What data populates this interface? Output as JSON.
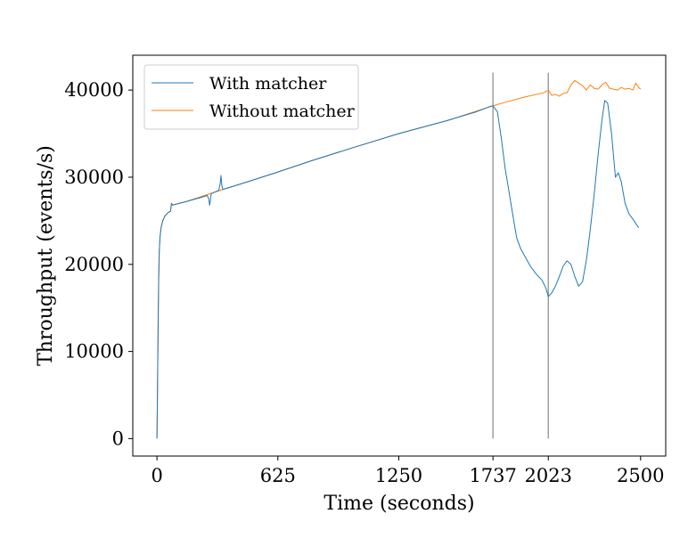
{
  "chart_data": {
    "type": "line",
    "title": "",
    "xlabel": "Time (seconds)",
    "ylabel": "Throughput (events/s)",
    "xlim": [
      -125,
      2630
    ],
    "ylim": [
      -2000,
      44000
    ],
    "x_ticks": [
      0,
      625,
      1250,
      1737,
      2023,
      2500
    ],
    "x_tick_labels": [
      "0",
      "625",
      "1250",
      "1737",
      "2023",
      "2500"
    ],
    "y_ticks": [
      0,
      10000,
      20000,
      30000,
      40000
    ],
    "y_tick_labels": [
      "0",
      "10000",
      "20000",
      "30000",
      "40000"
    ],
    "vlines": [
      1737,
      2023
    ],
    "vline_color": "#999999",
    "grid": false,
    "legend": {
      "position": "top-left",
      "entries": [
        "With matcher",
        "Without matcher"
      ]
    },
    "series": [
      {
        "name": "With matcher",
        "color": "#1f77b4",
        "points": [
          [
            0,
            0
          ],
          [
            3,
            6000
          ],
          [
            6,
            13000
          ],
          [
            9,
            18500
          ],
          [
            12,
            21500
          ],
          [
            16,
            23200
          ],
          [
            22,
            24300
          ],
          [
            30,
            25000
          ],
          [
            40,
            25500
          ],
          [
            55,
            25900
          ],
          [
            70,
            26100
          ],
          [
            75,
            27000
          ],
          [
            80,
            26800
          ],
          [
            150,
            27200
          ],
          [
            230,
            27700
          ],
          [
            260,
            27900
          ],
          [
            268,
            27500
          ],
          [
            272,
            26800
          ],
          [
            276,
            27300
          ],
          [
            280,
            28100
          ],
          [
            300,
            28300
          ],
          [
            320,
            28500
          ],
          [
            327,
            29300
          ],
          [
            331,
            30200
          ],
          [
            335,
            29100
          ],
          [
            340,
            28600
          ],
          [
            400,
            29000
          ],
          [
            500,
            29700
          ],
          [
            625,
            30600
          ],
          [
            800,
            31900
          ],
          [
            1000,
            33300
          ],
          [
            1250,
            35000
          ],
          [
            1500,
            36500
          ],
          [
            1650,
            37500
          ],
          [
            1720,
            38100
          ],
          [
            1737,
            38200
          ],
          [
            1760,
            37500
          ],
          [
            1780,
            34500
          ],
          [
            1800,
            31000
          ],
          [
            1820,
            28300
          ],
          [
            1840,
            25600
          ],
          [
            1860,
            23000
          ],
          [
            1880,
            21800
          ],
          [
            1900,
            21000
          ],
          [
            1930,
            19800
          ],
          [
            1960,
            18900
          ],
          [
            1990,
            18200
          ],
          [
            2010,
            17300
          ],
          [
            2023,
            16300
          ],
          [
            2040,
            16700
          ],
          [
            2060,
            17500
          ],
          [
            2080,
            18600
          ],
          [
            2100,
            19800
          ],
          [
            2120,
            20400
          ],
          [
            2140,
            20000
          ],
          [
            2160,
            18600
          ],
          [
            2180,
            17500
          ],
          [
            2200,
            18000
          ],
          [
            2220,
            20500
          ],
          [
            2240,
            24000
          ],
          [
            2260,
            28000
          ],
          [
            2280,
            32500
          ],
          [
            2300,
            36500
          ],
          [
            2315,
            38800
          ],
          [
            2330,
            38500
          ],
          [
            2350,
            35000
          ],
          [
            2370,
            30000
          ],
          [
            2385,
            30500
          ],
          [
            2400,
            29500
          ],
          [
            2420,
            27000
          ],
          [
            2440,
            25800
          ],
          [
            2460,
            25200
          ],
          [
            2475,
            24700
          ],
          [
            2490,
            24200
          ]
        ]
      },
      {
        "name": "Without matcher",
        "color": "#ff7f0e",
        "points": [
          [
            0,
            0
          ],
          [
            3,
            6000
          ],
          [
            6,
            13000
          ],
          [
            9,
            18500
          ],
          [
            12,
            21500
          ],
          [
            16,
            23200
          ],
          [
            22,
            24300
          ],
          [
            30,
            25000
          ],
          [
            40,
            25500
          ],
          [
            55,
            25900
          ],
          [
            70,
            26100
          ],
          [
            75,
            27000
          ],
          [
            80,
            26800
          ],
          [
            150,
            27200
          ],
          [
            300,
            28300
          ],
          [
            500,
            29700
          ],
          [
            625,
            30600
          ],
          [
            800,
            31900
          ],
          [
            1000,
            33300
          ],
          [
            1250,
            35000
          ],
          [
            1500,
            36500
          ],
          [
            1737,
            38200
          ],
          [
            1800,
            38600
          ],
          [
            1900,
            39200
          ],
          [
            2000,
            39700
          ],
          [
            2023,
            40000
          ],
          [
            2040,
            39400
          ],
          [
            2060,
            39500
          ],
          [
            2080,
            39300
          ],
          [
            2100,
            39600
          ],
          [
            2120,
            39700
          ],
          [
            2140,
            40600
          ],
          [
            2160,
            41100
          ],
          [
            2180,
            40800
          ],
          [
            2200,
            40500
          ],
          [
            2220,
            40000
          ],
          [
            2240,
            40600
          ],
          [
            2260,
            40200
          ],
          [
            2280,
            40100
          ],
          [
            2300,
            40600
          ],
          [
            2320,
            40900
          ],
          [
            2340,
            40200
          ],
          [
            2360,
            40100
          ],
          [
            2380,
            40000
          ],
          [
            2400,
            40300
          ],
          [
            2420,
            40100
          ],
          [
            2440,
            40200
          ],
          [
            2460,
            40000
          ],
          [
            2475,
            40800
          ],
          [
            2490,
            40300
          ],
          [
            2500,
            40100
          ]
        ]
      }
    ]
  }
}
